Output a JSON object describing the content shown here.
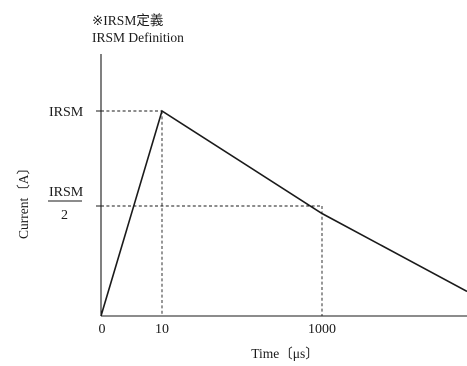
{
  "chart_data": {
    "type": "line",
    "title_lines": [
      "※IRSM定義",
      "IRSM Definition"
    ],
    "xlabel": "Time〔μs〕",
    "ylabel": "Current〔A〕",
    "x_ticks": [
      "0",
      "10",
      "1000"
    ],
    "y_ticks": [
      "IRSM",
      "IRSM",
      "2"
    ],
    "series": [
      {
        "points": [
          {
            "x": "0",
            "y": 0
          },
          {
            "x": "10",
            "y": 1
          },
          {
            "x": "1000",
            "y": 0.5
          },
          {
            "x": "end",
            "y": 0.12
          }
        ]
      }
    ],
    "guides": [
      {
        "from": "IRSM",
        "to_x": "10"
      },
      {
        "from": "IRSM/2",
        "to_x": "1000"
      }
    ],
    "ylim": [
      0,
      1
    ],
    "grid": false
  }
}
